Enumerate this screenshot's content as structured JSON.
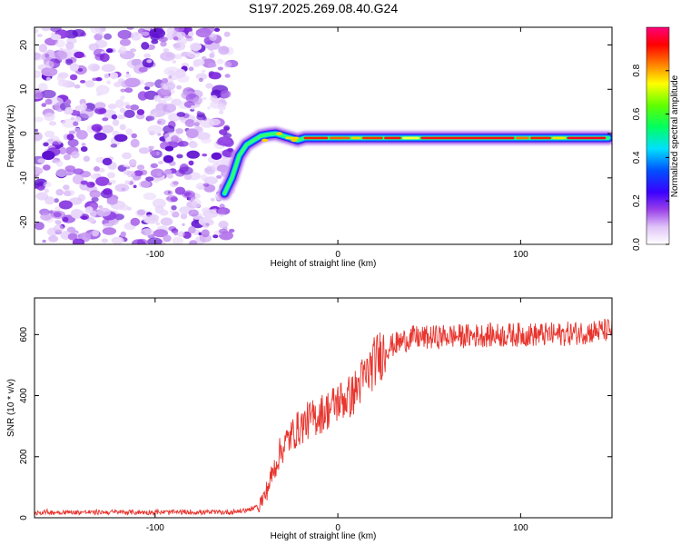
{
  "figure": {
    "title": "S197.2025.269.08.40.G24"
  },
  "chart_data": [
    {
      "type": "heatmap",
      "title": "S197.2025.269.08.40.G24",
      "xlabel": "Height of straight line (km)",
      "ylabel": "Frequency (Hz)",
      "xlim": [
        -166,
        150
      ],
      "ylim": [
        -25,
        24
      ],
      "xticks": [
        -100,
        0,
        100
      ],
      "yticks": [
        -20,
        -10,
        0,
        10,
        20
      ],
      "colorbar": {
        "label": "Normalized spectral amplitude",
        "range": [
          0,
          1
        ],
        "ticks": [
          0.0,
          0.2,
          0.4,
          0.6,
          0.8
        ]
      },
      "ridge": {
        "height_km": [
          -62,
          -58,
          -54,
          -50,
          -46,
          -42,
          -38,
          -34,
          -30,
          -26,
          -22,
          -18,
          -10,
          0,
          10,
          20,
          40,
          60,
          80,
          100,
          120,
          148
        ],
        "frequency_hz": [
          -13.5,
          -10,
          -5,
          -2.5,
          -1.5,
          -0.5,
          -0.2,
          0,
          -0.5,
          -1,
          -1.5,
          -1,
          -1,
          -1,
          -1,
          -1,
          -1,
          -1,
          -1,
          -1,
          -1,
          -1
        ]
      },
      "noise_extent_km": [
        -166,
        -60
      ]
    },
    {
      "type": "line",
      "xlabel": "Height of straight line (km)",
      "ylabel": "SNR (10 * v/v)",
      "xlim": [
        -166,
        150
      ],
      "ylim": [
        0,
        720
      ],
      "xticks": [
        -100,
        0,
        100
      ],
      "yticks": [
        0,
        200,
        400,
        600
      ],
      "series": [
        {
          "name": "SNR",
          "color": "#e8352e",
          "x": [
            -166,
            -140,
            -110,
            -80,
            -60,
            -50,
            -44,
            -40,
            -36,
            -32,
            -28,
            -24,
            -20,
            -16,
            -12,
            -8,
            -4,
            0,
            4,
            8,
            12,
            16,
            20,
            24,
            28,
            32,
            36,
            40,
            45,
            50,
            60,
            70,
            80,
            90,
            100,
            110,
            120,
            130,
            140,
            150
          ],
          "y": [
            18,
            18,
            18,
            18,
            18,
            25,
            35,
            70,
            140,
            210,
            250,
            280,
            300,
            320,
            330,
            345,
            360,
            380,
            390,
            400,
            440,
            470,
            510,
            540,
            560,
            570,
            580,
            590,
            590,
            590,
            595,
            595,
            598,
            598,
            600,
            600,
            600,
            605,
            610,
            615
          ]
        }
      ]
    }
  ]
}
